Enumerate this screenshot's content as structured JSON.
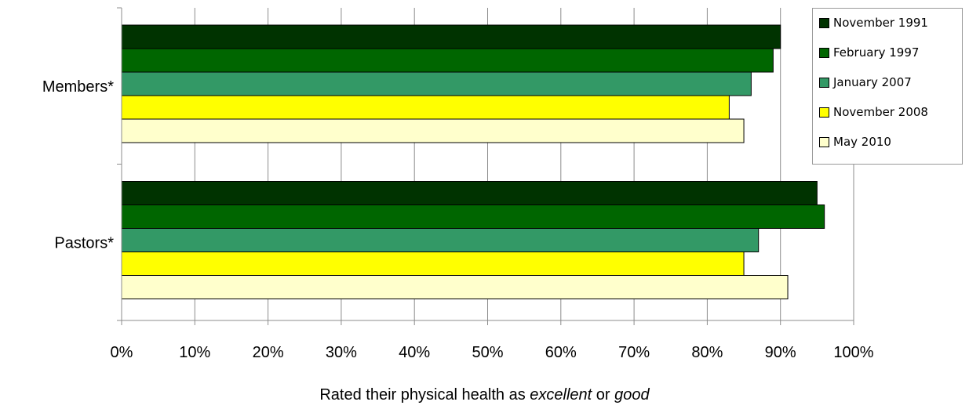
{
  "chart_data": {
    "type": "bar",
    "orientation": "horizontal",
    "categories": [
      "Members*",
      "Pastors*"
    ],
    "series": [
      {
        "name": "November 1991",
        "color": "#003300",
        "values": [
          90,
          95
        ]
      },
      {
        "name": "February 1997",
        "color": "#006600",
        "values": [
          89,
          96
        ]
      },
      {
        "name": "January 2007",
        "color": "#339966",
        "values": [
          86,
          87
        ]
      },
      {
        "name": "November 2008",
        "color": "#ffff00",
        "values": [
          83,
          85
        ]
      },
      {
        "name": "May 2010",
        "color": "#ffffcc",
        "values": [
          85,
          91
        ]
      }
    ],
    "xlim": [
      0,
      100
    ],
    "x_tick_labels": [
      "0%",
      "10%",
      "20%",
      "30%",
      "40%",
      "50%",
      "60%",
      "70%",
      "80%",
      "90%",
      "100%"
    ],
    "xlabel": {
      "prefix": "Rated their physical health as ",
      "emph1": "excellent",
      "middle": " or ",
      "emph2": "good"
    },
    "grid": "vertical",
    "legend_position": "top-right"
  }
}
